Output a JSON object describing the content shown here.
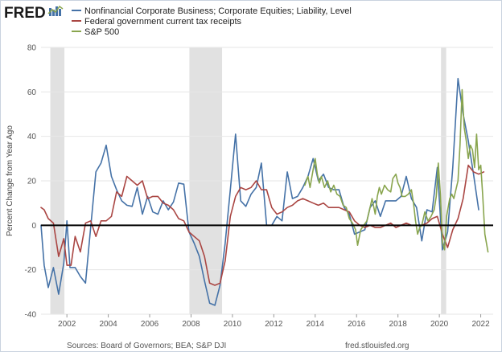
{
  "header": {
    "logo_text": "FRED",
    "logo_icon": "fred-chart-logo-icon"
  },
  "colors": {
    "series_1": "#4572a7",
    "series_2": "#aa4643",
    "series_3": "#89a54e",
    "recession": "#e1e1e1",
    "zero_line": "#000000",
    "grid": "#e6e6e6"
  },
  "footer": {
    "sources": "Sources: Board of Governors; BEA; S&P DJI",
    "url": "fred.stlouisfed.org"
  },
  "chart_data": {
    "type": "line",
    "title": "",
    "xlabel": "",
    "ylabel": "Percent Change from Year Ago",
    "xlim": [
      2000.75,
      2022.6
    ],
    "ylim": [
      -40,
      80
    ],
    "yticks": [
      -40,
      -20,
      0,
      20,
      40,
      60,
      80
    ],
    "xticks": [
      2002,
      2004,
      2006,
      2008,
      2010,
      2012,
      2014,
      2016,
      2018,
      2020,
      2022
    ],
    "grid": true,
    "zero_line": true,
    "legend_position": "top-left",
    "recessions": [
      [
        2001.2,
        2001.88
      ],
      [
        2007.92,
        2009.5
      ],
      [
        2020.08,
        2020.33
      ]
    ],
    "series": [
      {
        "name": "Nonfinancial Corporate Business; Corporate Equities; Liability, Level",
        "color": "#4572a7",
        "points": [
          [
            2000.75,
            0
          ],
          [
            2000.9,
            -18
          ],
          [
            2001.1,
            -28
          ],
          [
            2001.35,
            -19
          ],
          [
            2001.6,
            -31
          ],
          [
            2001.85,
            -17
          ],
          [
            2002.0,
            2
          ],
          [
            2002.15,
            -19
          ],
          [
            2002.4,
            -19
          ],
          [
            2002.65,
            -23
          ],
          [
            2002.9,
            -26
          ],
          [
            2003.15,
            -1
          ],
          [
            2003.4,
            24
          ],
          [
            2003.65,
            28
          ],
          [
            2003.9,
            36
          ],
          [
            2004.15,
            22
          ],
          [
            2004.4,
            16
          ],
          [
            2004.65,
            11
          ],
          [
            2004.9,
            9
          ],
          [
            2005.15,
            8.5
          ],
          [
            2005.4,
            17
          ],
          [
            2005.65,
            5
          ],
          [
            2005.9,
            13
          ],
          [
            2006.15,
            6
          ],
          [
            2006.4,
            5
          ],
          [
            2006.65,
            11
          ],
          [
            2006.9,
            7
          ],
          [
            2007.15,
            10.5
          ],
          [
            2007.4,
            19
          ],
          [
            2007.65,
            18.5
          ],
          [
            2007.9,
            -3
          ],
          [
            2008.15,
            -8
          ],
          [
            2008.4,
            -14
          ],
          [
            2008.65,
            -25
          ],
          [
            2008.9,
            -35
          ],
          [
            2009.15,
            -36
          ],
          [
            2009.4,
            -27
          ],
          [
            2009.65,
            -8
          ],
          [
            2009.9,
            16
          ],
          [
            2010.15,
            41
          ],
          [
            2010.4,
            11
          ],
          [
            2010.65,
            8.5
          ],
          [
            2010.9,
            14
          ],
          [
            2011.15,
            17
          ],
          [
            2011.4,
            28
          ],
          [
            2011.65,
            0
          ],
          [
            2011.9,
            0
          ],
          [
            2012.15,
            4
          ],
          [
            2012.4,
            2
          ],
          [
            2012.65,
            24
          ],
          [
            2012.9,
            12
          ],
          [
            2013.15,
            13
          ],
          [
            2013.4,
            17
          ],
          [
            2013.65,
            22
          ],
          [
            2013.9,
            30
          ],
          [
            2014.15,
            20
          ],
          [
            2014.4,
            23
          ],
          [
            2014.65,
            17
          ],
          [
            2014.9,
            16
          ],
          [
            2015.15,
            16
          ],
          [
            2015.4,
            8
          ],
          [
            2015.65,
            5
          ],
          [
            2015.9,
            -4
          ],
          [
            2016.15,
            -3
          ],
          [
            2016.4,
            -2
          ],
          [
            2016.65,
            8
          ],
          [
            2016.9,
            11
          ],
          [
            2017.15,
            4
          ],
          [
            2017.4,
            11
          ],
          [
            2017.65,
            11
          ],
          [
            2017.9,
            11
          ],
          [
            2018.15,
            13
          ],
          [
            2018.4,
            22
          ],
          [
            2018.65,
            12
          ],
          [
            2018.9,
            8
          ],
          [
            2019.15,
            -7
          ],
          [
            2019.4,
            7
          ],
          [
            2019.65,
            6
          ],
          [
            2019.9,
            26
          ],
          [
            2020.15,
            -11
          ],
          [
            2020.4,
            -3
          ],
          [
            2020.65,
            26
          ],
          [
            2020.9,
            66
          ],
          [
            2021.15,
            50
          ],
          [
            2021.4,
            38
          ],
          [
            2021.65,
            23
          ],
          [
            2021.9,
            7
          ]
        ]
      },
      {
        "name": "Federal government current tax receipts",
        "color": "#aa4643",
        "points": [
          [
            2000.75,
            8
          ],
          [
            2000.9,
            7
          ],
          [
            2001.1,
            3
          ],
          [
            2001.35,
            1
          ],
          [
            2001.6,
            -14
          ],
          [
            2001.85,
            -6
          ],
          [
            2002.0,
            -18
          ],
          [
            2002.2,
            -18
          ],
          [
            2002.4,
            -5
          ],
          [
            2002.65,
            -12
          ],
          [
            2002.9,
            1
          ],
          [
            2003.15,
            2
          ],
          [
            2003.4,
            -5
          ],
          [
            2003.65,
            2
          ],
          [
            2003.9,
            2
          ],
          [
            2004.15,
            4
          ],
          [
            2004.4,
            15
          ],
          [
            2004.65,
            13
          ],
          [
            2004.9,
            22
          ],
          [
            2005.15,
            20
          ],
          [
            2005.4,
            18
          ],
          [
            2005.65,
            20
          ],
          [
            2005.9,
            12
          ],
          [
            2006.15,
            13
          ],
          [
            2006.4,
            13
          ],
          [
            2006.65,
            10
          ],
          [
            2006.9,
            9
          ],
          [
            2007.15,
            7
          ],
          [
            2007.4,
            3
          ],
          [
            2007.65,
            2
          ],
          [
            2007.9,
            -3
          ],
          [
            2008.15,
            -5
          ],
          [
            2008.4,
            -7
          ],
          [
            2008.65,
            -14
          ],
          [
            2008.9,
            -26
          ],
          [
            2009.15,
            -27
          ],
          [
            2009.4,
            -26
          ],
          [
            2009.65,
            -16
          ],
          [
            2009.9,
            4
          ],
          [
            2010.15,
            13
          ],
          [
            2010.4,
            17
          ],
          [
            2010.65,
            16
          ],
          [
            2010.9,
            17
          ],
          [
            2011.15,
            20
          ],
          [
            2011.4,
            16
          ],
          [
            2011.65,
            16
          ],
          [
            2011.9,
            8
          ],
          [
            2012.15,
            5
          ],
          [
            2012.4,
            6
          ],
          [
            2012.65,
            8
          ],
          [
            2012.9,
            9
          ],
          [
            2013.15,
            11
          ],
          [
            2013.4,
            12
          ],
          [
            2013.65,
            11
          ],
          [
            2013.9,
            10
          ],
          [
            2014.15,
            9
          ],
          [
            2014.4,
            10
          ],
          [
            2014.65,
            8
          ],
          [
            2014.9,
            8
          ],
          [
            2015.15,
            8
          ],
          [
            2015.4,
            7
          ],
          [
            2015.65,
            6
          ],
          [
            2015.9,
            2
          ],
          [
            2016.15,
            0
          ],
          [
            2016.4,
            -1
          ],
          [
            2016.65,
            0
          ],
          [
            2016.9,
            -1
          ],
          [
            2017.15,
            -1
          ],
          [
            2017.4,
            0
          ],
          [
            2017.65,
            1
          ],
          [
            2017.9,
            -1
          ],
          [
            2018.15,
            0
          ],
          [
            2018.4,
            1
          ],
          [
            2018.65,
            0
          ],
          [
            2018.9,
            0
          ],
          [
            2019.15,
            0
          ],
          [
            2019.4,
            1
          ],
          [
            2019.65,
            3
          ],
          [
            2019.9,
            4
          ],
          [
            2020.15,
            -4
          ],
          [
            2020.4,
            -10
          ],
          [
            2020.65,
            -2
          ],
          [
            2020.9,
            3
          ],
          [
            2021.15,
            12
          ],
          [
            2021.4,
            27
          ],
          [
            2021.65,
            24
          ],
          [
            2021.9,
            23
          ],
          [
            2022.15,
            24
          ]
        ]
      },
      {
        "name": "S&P 500",
        "color": "#89a54e",
        "points": [
          [
            2013.5,
            18
          ],
          [
            2013.65,
            22
          ],
          [
            2013.75,
            17
          ],
          [
            2013.9,
            25
          ],
          [
            2014.0,
            30
          ],
          [
            2014.1,
            23
          ],
          [
            2014.2,
            19
          ],
          [
            2014.3,
            22
          ],
          [
            2014.45,
            17
          ],
          [
            2014.6,
            20
          ],
          [
            2014.75,
            15
          ],
          [
            2014.9,
            18
          ],
          [
            2015.05,
            14
          ],
          [
            2015.2,
            13
          ],
          [
            2015.35,
            9
          ],
          [
            2015.5,
            8
          ],
          [
            2015.65,
            3
          ],
          [
            2015.8,
            1
          ],
          [
            2015.95,
            -2
          ],
          [
            2016.05,
            -9
          ],
          [
            2016.2,
            -2
          ],
          [
            2016.35,
            0
          ],
          [
            2016.5,
            2
          ],
          [
            2016.65,
            8
          ],
          [
            2016.75,
            12
          ],
          [
            2016.9,
            5
          ],
          [
            2017.0,
            13
          ],
          [
            2017.1,
            17
          ],
          [
            2017.2,
            14
          ],
          [
            2017.35,
            18
          ],
          [
            2017.5,
            16
          ],
          [
            2017.65,
            15
          ],
          [
            2017.75,
            21
          ],
          [
            2017.9,
            23
          ],
          [
            2018.0,
            19
          ],
          [
            2018.1,
            17
          ],
          [
            2018.2,
            13
          ],
          [
            2018.35,
            13
          ],
          [
            2018.5,
            14
          ],
          [
            2018.65,
            16
          ],
          [
            2018.75,
            10
          ],
          [
            2018.85,
            2
          ],
          [
            2018.95,
            -4
          ],
          [
            2019.05,
            -1
          ],
          [
            2019.15,
            0
          ],
          [
            2019.3,
            6
          ],
          [
            2019.45,
            2
          ],
          [
            2019.6,
            4
          ],
          [
            2019.75,
            7
          ],
          [
            2019.85,
            13
          ],
          [
            2019.95,
            28
          ],
          [
            2020.05,
            14
          ],
          [
            2020.15,
            -8
          ],
          [
            2020.25,
            -11
          ],
          [
            2020.35,
            4
          ],
          [
            2020.5,
            12
          ],
          [
            2020.6,
            14
          ],
          [
            2020.7,
            12
          ],
          [
            2020.8,
            16
          ],
          [
            2020.9,
            20
          ],
          [
            2021.0,
            36
          ],
          [
            2021.1,
            61
          ],
          [
            2021.2,
            44
          ],
          [
            2021.3,
            38
          ],
          [
            2021.4,
            30
          ],
          [
            2021.5,
            36
          ],
          [
            2021.6,
            34
          ],
          [
            2021.7,
            26
          ],
          [
            2021.8,
            41
          ],
          [
            2021.9,
            25
          ],
          [
            2022.0,
            27
          ],
          [
            2022.1,
            13
          ],
          [
            2022.2,
            -4
          ],
          [
            2022.35,
            -12
          ]
        ]
      }
    ]
  }
}
